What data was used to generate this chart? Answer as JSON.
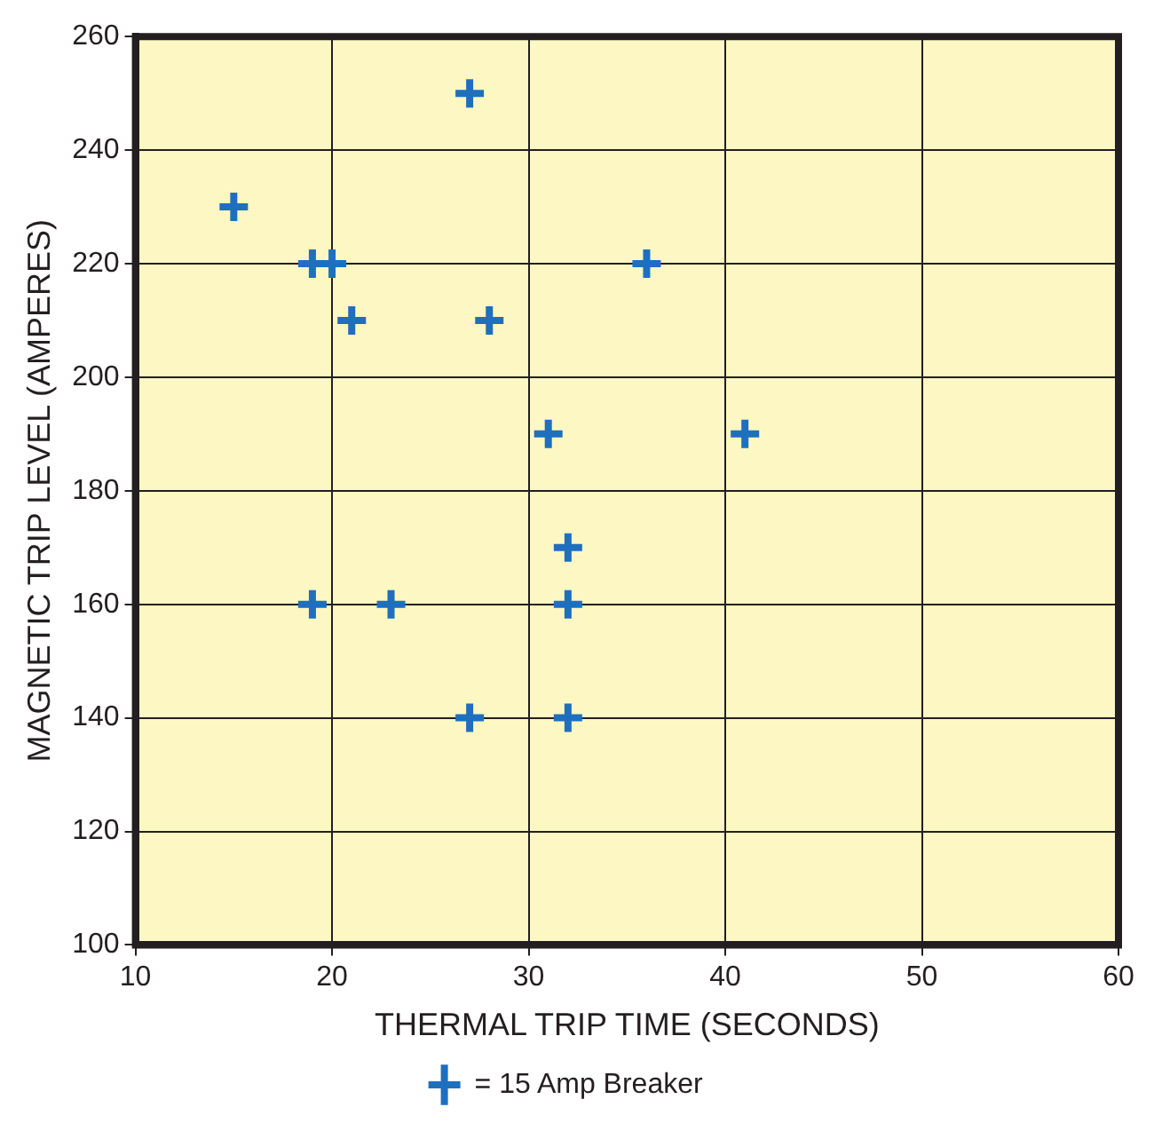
{
  "chart_data": {
    "type": "scatter",
    "xlabel": "THERMAL TRIP TIME (SECONDS)",
    "ylabel": "MAGNETIC TRIP LEVEL (AMPERES)",
    "x": [
      27,
      15,
      19,
      20,
      21,
      28,
      36,
      31,
      41,
      32,
      19,
      23,
      32,
      27,
      32
    ],
    "series": [
      {
        "name": "= 15 Amp Breaker",
        "color": "#1f6fbf",
        "values": [
          250,
          230,
          220,
          220,
          210,
          210,
          220,
          190,
          190,
          170,
          160,
          160,
          160,
          140,
          140
        ]
      }
    ],
    "xlim": [
      10,
      60
    ],
    "xticks": [
      10,
      20,
      30,
      40,
      50,
      60
    ],
    "ylim": [
      100,
      260
    ],
    "yticks": [
      100,
      120,
      140,
      160,
      180,
      200,
      220,
      240,
      260
    ],
    "grid": true,
    "legend": "bottom",
    "marker": "cross"
  }
}
